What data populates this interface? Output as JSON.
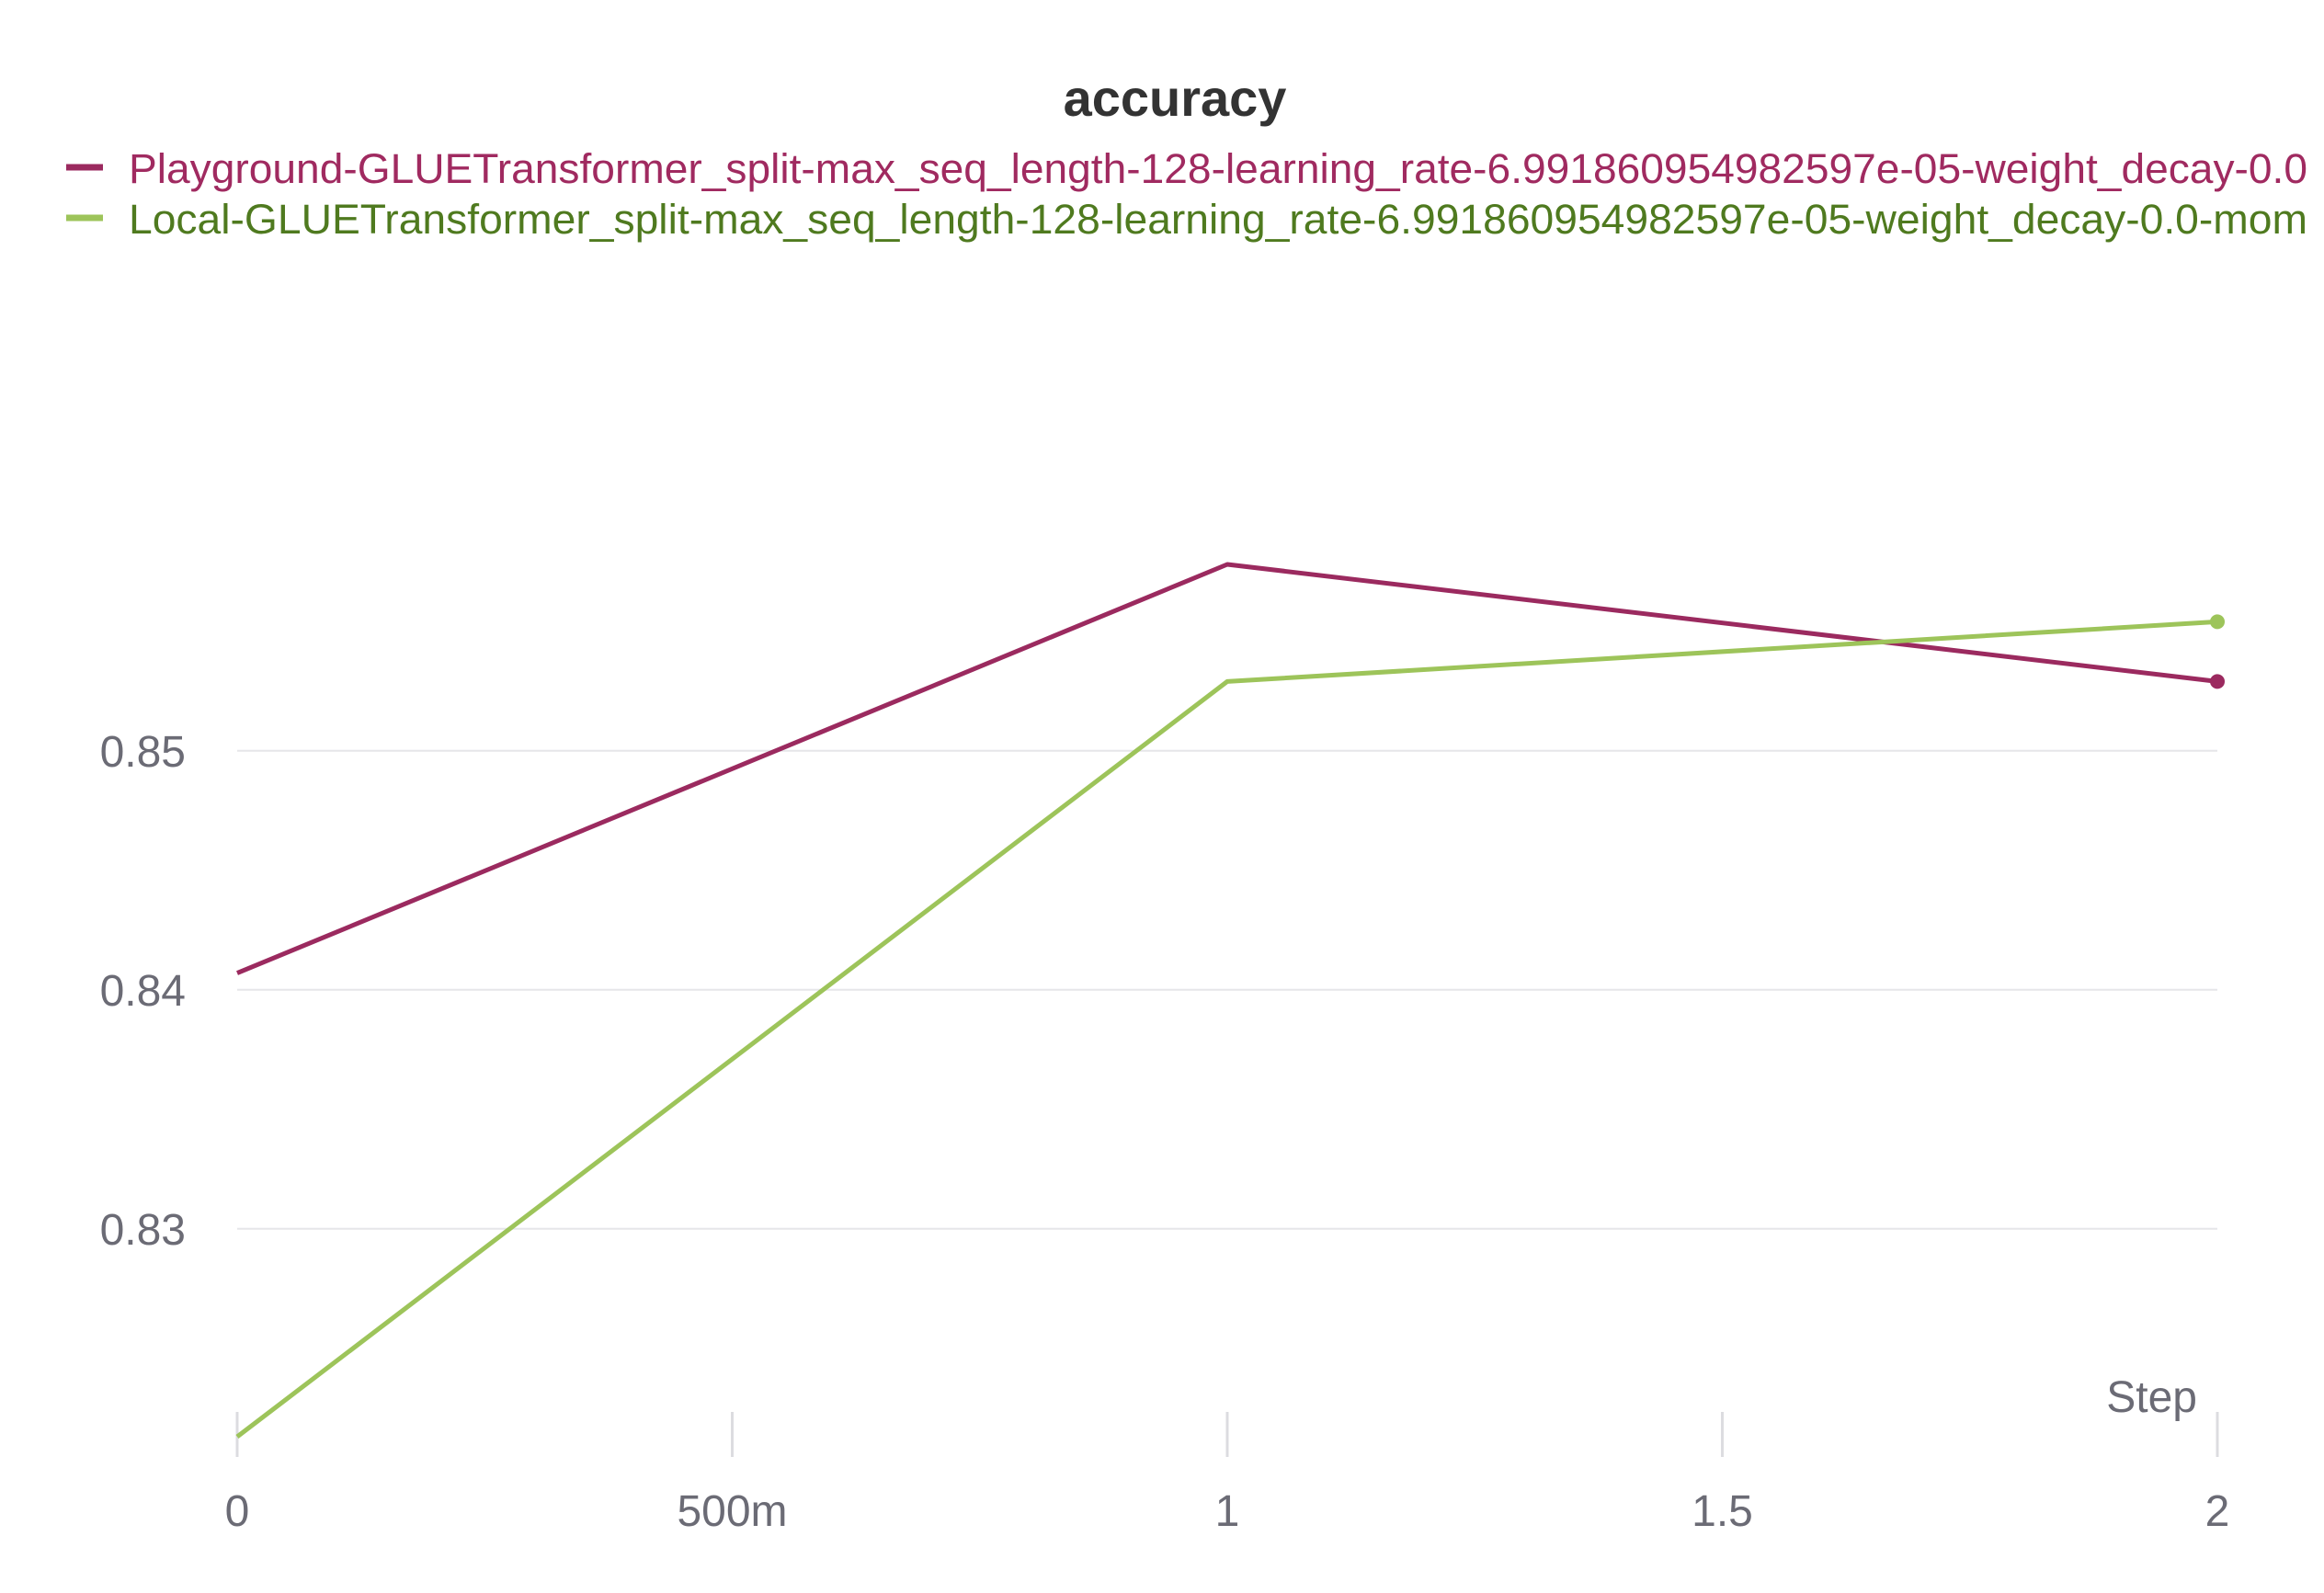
{
  "chart_data": {
    "type": "line",
    "title": "accuracy",
    "xlabel": "Step",
    "ylabel": "",
    "x_ticks": [
      {
        "value": 0,
        "label": "0"
      },
      {
        "value": 0.5,
        "label": "500m"
      },
      {
        "value": 1,
        "label": "1"
      },
      {
        "value": 1.5,
        "label": "1.5"
      },
      {
        "value": 2,
        "label": "2"
      }
    ],
    "y_ticks": [
      {
        "value": 0.83,
        "label": "0.83"
      },
      {
        "value": 0.84,
        "label": "0.84"
      },
      {
        "value": 0.85,
        "label": "0.85"
      }
    ],
    "xlim": [
      0,
      2
    ],
    "ylim": [
      0.8213,
      0.8718
    ],
    "grid": "horizontal",
    "legend_position": "top-left",
    "x": [
      0,
      1,
      2
    ],
    "series": [
      {
        "name": "Playground-GLUETransformer_split-max_seq_length-128-learning_rate-6.991860954982597e-05-weight_decay-0.0",
        "values": [
          0.8407,
          0.8578,
          0.8529
        ],
        "color": "#9b2a5f",
        "label_color": "#a02a60"
      },
      {
        "name": "Local-GLUETransformer_split-max_seq_length-128-learning_rate-6.991860954982597e-05-weight_decay-0.0-mom",
        "values": [
          0.8213,
          0.8529,
          0.8554
        ],
        "color": "#9dc45a",
        "label_color": "#4f7a1f"
      }
    ]
  }
}
